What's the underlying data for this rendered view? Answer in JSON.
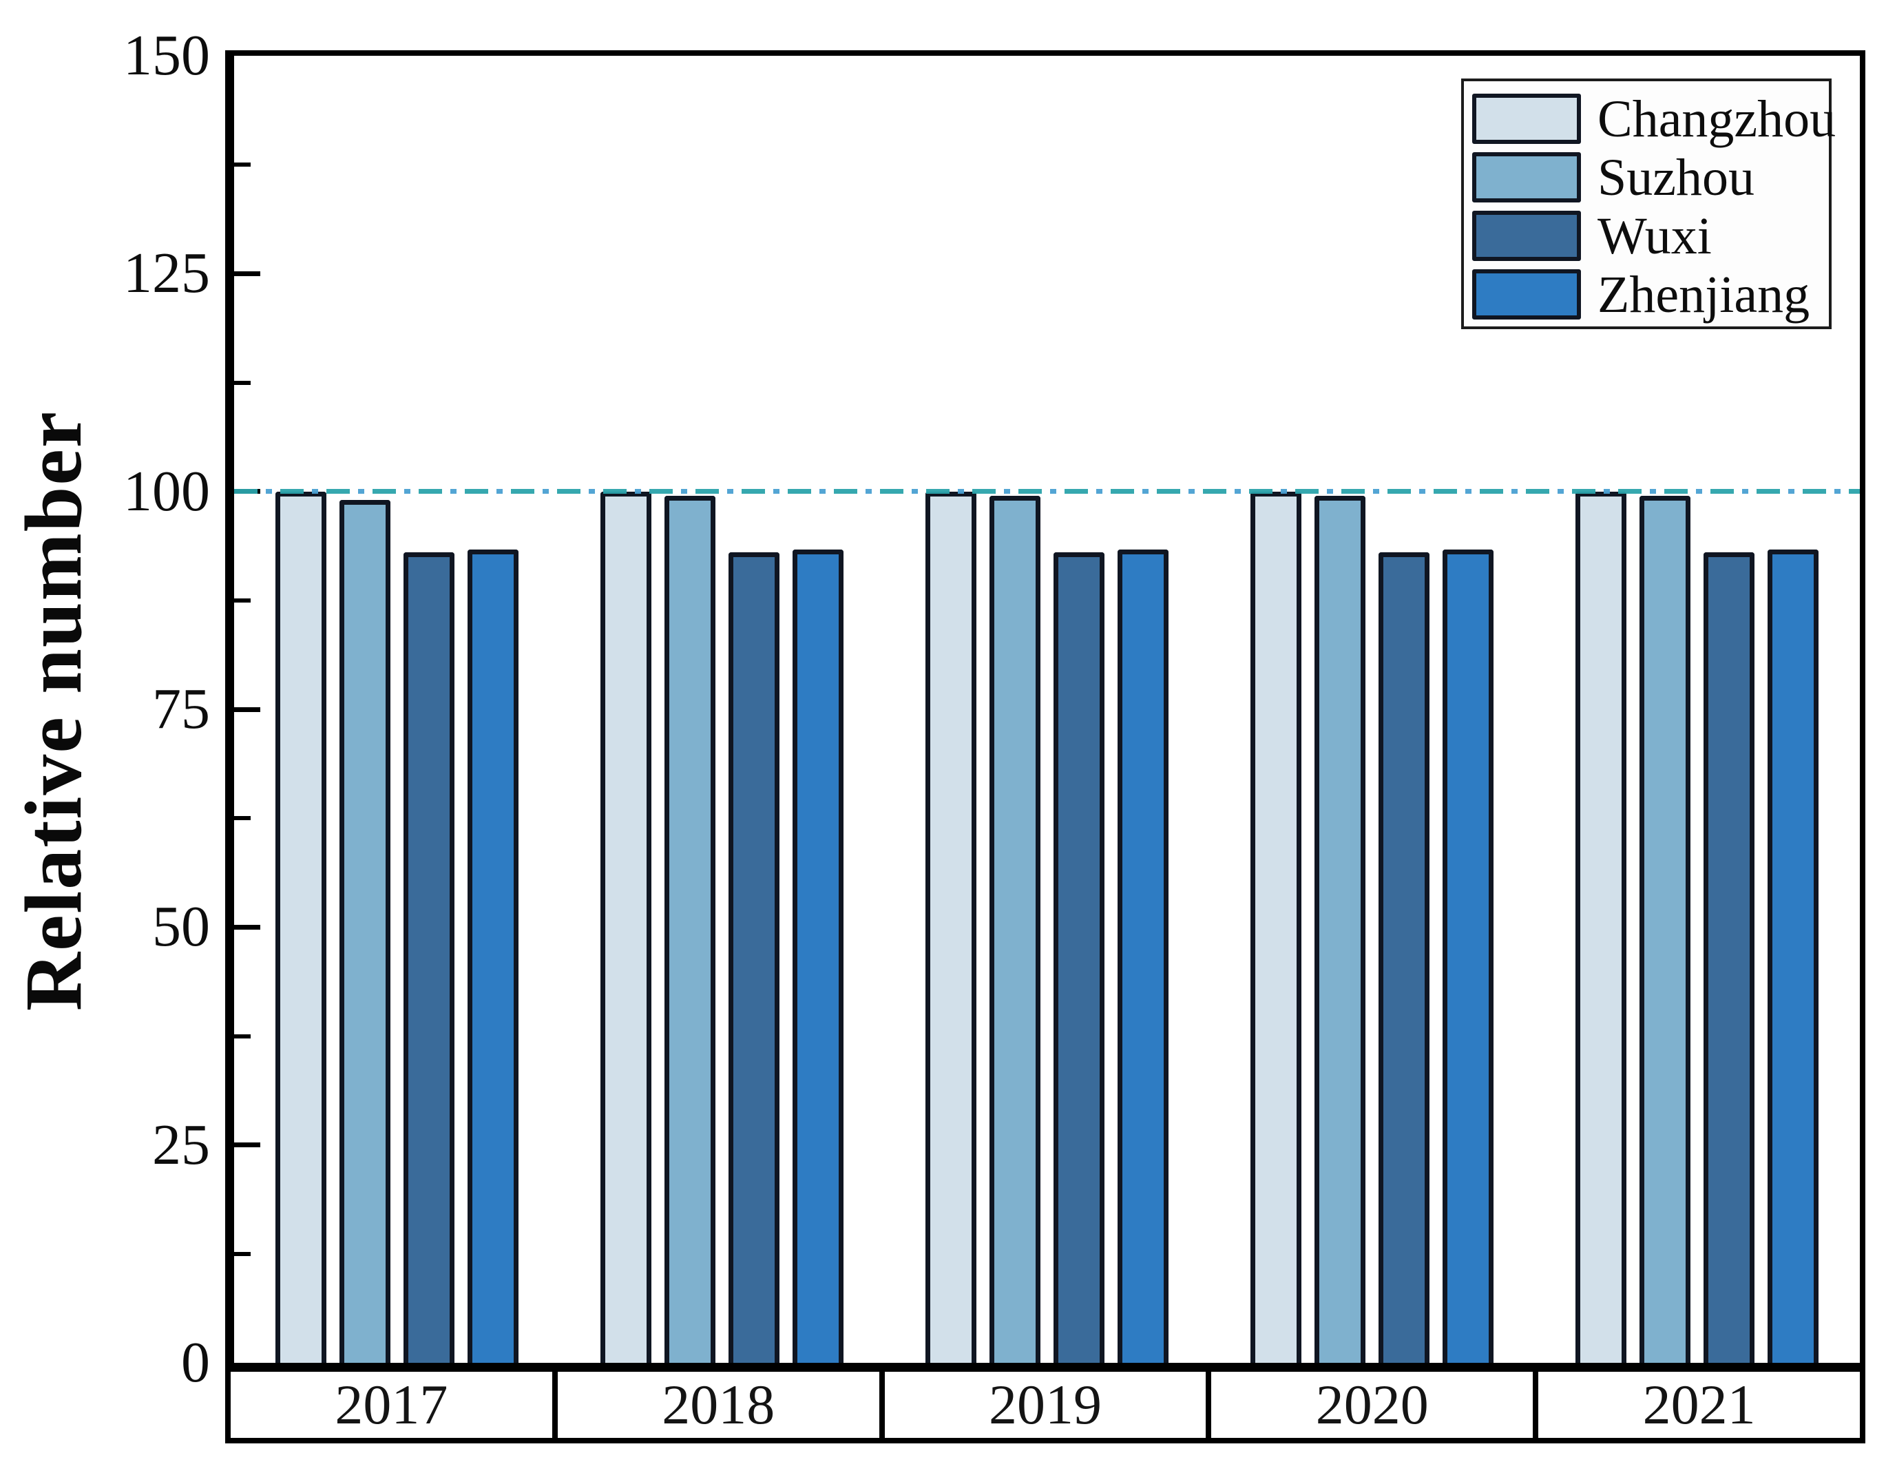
{
  "chart_data": {
    "type": "bar",
    "title": "",
    "xlabel": "",
    "ylabel": "Relative number",
    "ylim": [
      0,
      150
    ],
    "yticks": [
      0,
      25,
      50,
      75,
      100,
      125,
      150
    ],
    "minor_tick_step": 12.5,
    "grid": false,
    "categories": [
      "2017",
      "2018",
      "2019",
      "2020",
      "2021"
    ],
    "series": [
      {
        "name": "Changzhou",
        "color": "#d2e0ea",
        "values": [
          100,
          100,
          100,
          100,
          100
        ]
      },
      {
        "name": "Suzhou",
        "color": "#7fb1ce",
        "values": [
          99,
          99.5,
          99.5,
          99.5,
          99.5
        ]
      },
      {
        "name": "Wuxi",
        "color": "#3a6b9a",
        "values": [
          93,
          93,
          93,
          93,
          93
        ]
      },
      {
        "name": "Zhenjiang",
        "color": "#2e7cc3",
        "values": [
          93.3,
          93.3,
          93.3,
          93.3,
          93.3
        ]
      }
    ],
    "bar_outline_color": "#101622",
    "reference_line": {
      "value": 100,
      "style": "dash-dot",
      "colors": [
        "#2ba3ab",
        "#4aa0d2"
      ]
    },
    "legend_position": "top-right"
  }
}
